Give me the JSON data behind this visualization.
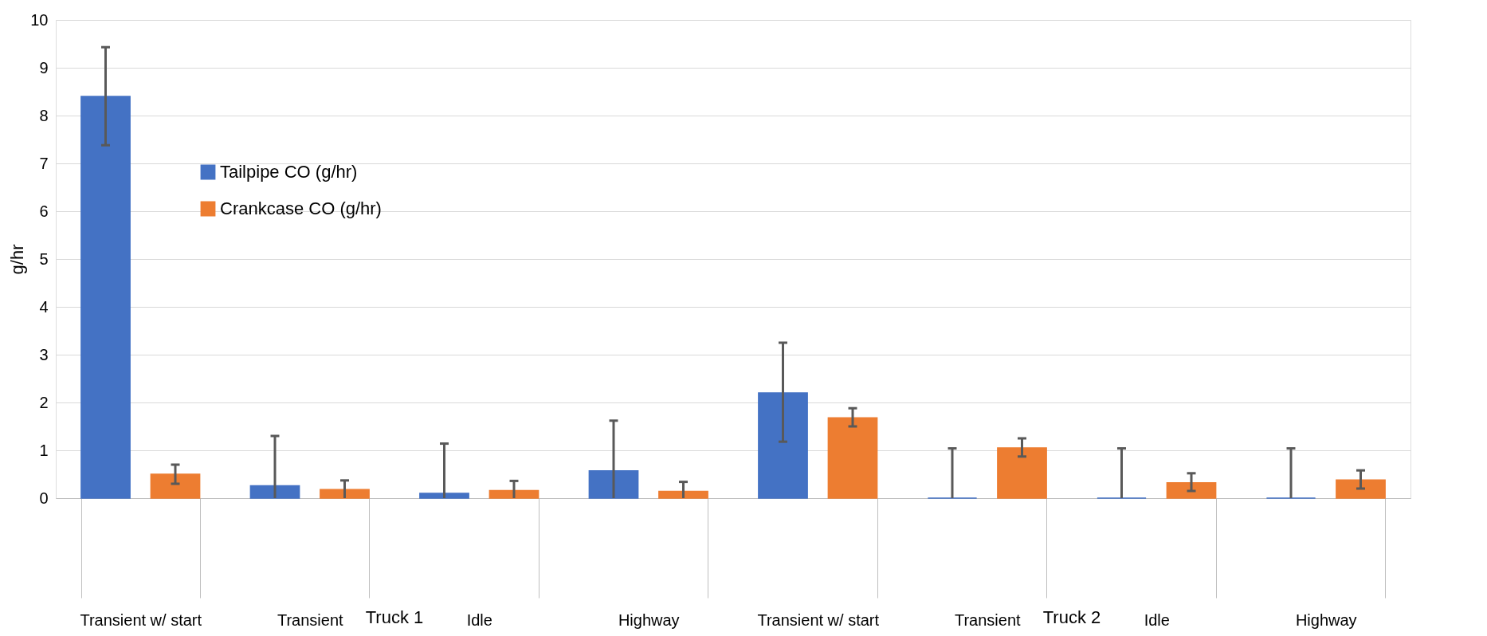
{
  "chart_data": {
    "type": "bar",
    "ylabel": "g/hr",
    "categories": [
      "Transient w/ start",
      "Transient",
      "Idle",
      "Highway",
      "Transient w/ start",
      "Transient",
      "Idle",
      "Highway"
    ],
    "series": [
      {
        "name": "Tailpipe CO (g/hr)",
        "color": "#4472c4",
        "values": [
          8.4,
          0.26,
          0.1,
          0.57,
          2.2,
          0,
          0,
          0
        ],
        "errors": [
          [
            7.38,
            9.43
          ],
          [
            0,
            1.3
          ],
          [
            0,
            1.14
          ],
          [
            0,
            1.62
          ],
          [
            1.18,
            3.25
          ],
          [
            0,
            1.04
          ],
          [
            0,
            1.04
          ],
          [
            0,
            1.04
          ]
        ]
      },
      {
        "name": "Crankcase CO (g/hr)",
        "color": "#ed7d31",
        "values": [
          0.5,
          0.18,
          0.16,
          0.14,
          1.68,
          1.05,
          0.32,
          0.38
        ],
        "errors": [
          [
            0.3,
            0.7
          ],
          [
            0,
            0.37
          ],
          [
            0,
            0.36
          ],
          [
            0,
            0.34
          ],
          [
            1.5,
            1.88
          ],
          [
            0.87,
            1.25
          ],
          [
            0.15,
            0.52
          ],
          [
            0.2,
            0.58
          ]
        ]
      }
    ],
    "annotations": [
      "Truck 1",
      "Truck 2"
    ],
    "ylim": [
      0,
      10
    ],
    "yticks": [
      0,
      1,
      2,
      3,
      4,
      5,
      6,
      7,
      8,
      9,
      10
    ],
    "grid": "y",
    "legend": "top left"
  }
}
